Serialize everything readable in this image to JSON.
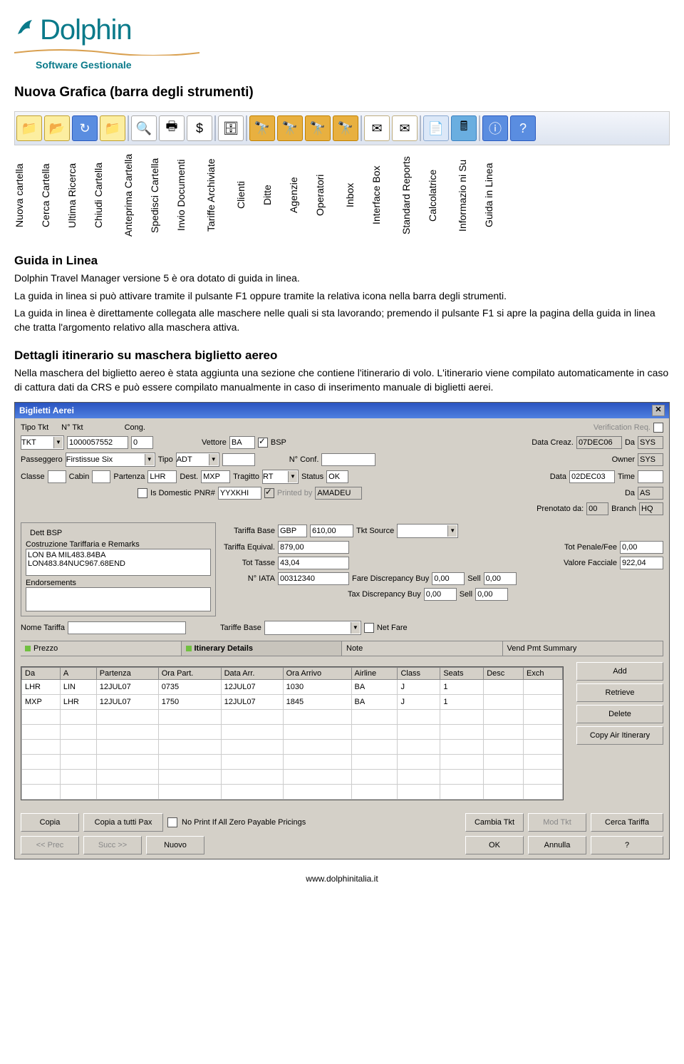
{
  "logo": {
    "name": "Dolphin",
    "tag": "Software Gestionale"
  },
  "h1": "Nuova Grafica (barra degli strumenti)",
  "toolbar_labels": [
    "Nuova cartella",
    "Cerca Cartella",
    "Ultima Ricerca",
    "Chiudi Cartella",
    "Anteprima Cartella",
    "Spedisci Cartella",
    "Invio Documenti",
    "Tariffe Archiviate",
    "Clienti",
    "Ditte",
    "Agenzie",
    "Operatori",
    "Inbox",
    "Interface Box",
    "Standard Reports",
    "Calcolatrice",
    "Informazio ni Su",
    "Guida in Linea"
  ],
  "tb_letters": [
    "CL",
    "D",
    "A",
    "F"
  ],
  "s1_h": "Guida in Linea",
  "s1_p1": "Dolphin Travel Manager versione 5 è ora dotato di guida in linea.",
  "s1_p2": "La guida in linea si può attivare tramite il pulsante F1 oppure tramite la relativa icona nella barra degli strumenti.",
  "s1_p3": "La guida in linea è direttamente collegata alle maschere nelle quali si sta lavorando; premendo il pulsante F1 si apre la pagina della guida in linea che tratta l'argomento relativo alla maschera attiva.",
  "s2_h": "Dettagli itinerario su maschera biglietto aereo",
  "s2_p1": "Nella maschera del biglietto aereo è stata aggiunta una sezione che contiene l'itinerario di volo. L'itinerario viene compilato automaticamente in caso di cattura dati da CRS e può essere compilato manualmente in caso di inserimento manuale di biglietti aerei.",
  "win": {
    "title": "Biglietti Aerei",
    "labels": {
      "tipo_tkt": "Tipo Tkt",
      "n_tkt": "N° Tkt",
      "cong": "Cong.",
      "ver_req": "Verification Req.",
      "vettore": "Vettore",
      "bsp": "BSP",
      "data_creaz": "Data Creaz.",
      "da": "Da",
      "passeggero": "Passeggero",
      "tipo": "Tipo",
      "n_conf": "N° Conf.",
      "owner": "Owner",
      "classe": "Classe",
      "cabin": "Cabin",
      "partenza": "Partenza",
      "dest": "Dest.",
      "tragitto": "Tragitto",
      "status": "Status",
      "data": "Data",
      "time": "Time",
      "is_dom": "Is Domestic",
      "pnr": "PNR#",
      "printed_by": "Printed by",
      "da2": "Da",
      "prenotato": "Prenotato da:",
      "branch": "Branch",
      "dett_bsp": "Dett BSP",
      "costruzione": "Costruzione Tariffaria e Remarks",
      "endorsements": "Endorsements",
      "tariffa_base": "Tariffa Base",
      "tariffa_equival": "Tariffa Equival.",
      "tot_tasse": "Tot Tasse",
      "n_iata": "N° IATA",
      "tkt_source": "Tkt Source",
      "tot_penale": "Tot Penale/Fee",
      "valore_facciale": "Valore Facciale",
      "fare_disc": "Fare Discrepancy Buy",
      "tax_disc": "Tax Discrepancy Buy",
      "sell": "Sell",
      "nome_tariffa": "Nome Tariffa",
      "tariffe_base": "Tariffe Base",
      "net_fare": "Net Fare"
    },
    "vals": {
      "tipo_tkt": "TKT",
      "n_tkt": "1000057552",
      "cong": "0",
      "vettore": "BA",
      "data_creaz": "07DEC06",
      "da": "SYS",
      "passeggero": "Firstissue Six",
      "tipo": "ADT",
      "owner": "SYS",
      "partenza": "LHR",
      "dest": "MXP",
      "tragitto": "RT",
      "status": "OK",
      "data": "02DEC03",
      "pnr": "YYXKHI",
      "printed_by": "AMADEU",
      "da2": "AS",
      "prenotato": "00",
      "branch": "HQ",
      "remarks1": "LON BA MIL483.84BA",
      "remarks2": "LON483.84NUC967.68END",
      "tariffa_base_cur": "GBP",
      "tariffa_base_val": "610,00",
      "tariffa_equival": "879,00",
      "tot_tasse": "43,04",
      "n_iata": "00312340",
      "tot_penale": "0,00",
      "valore_facciale": "922,04",
      "fare_disc": "0,00",
      "fare_sell": "0,00",
      "tax_disc": "0,00",
      "tax_sell": "0,00"
    },
    "tabs": [
      "Prezzo",
      "Itinerary Details",
      "Note",
      "Vend Pmt Summary"
    ],
    "grid": {
      "cols": [
        "Da",
        "A",
        "Partenza",
        "Ora Part.",
        "Data Arr.",
        "Ora Arrivo",
        "Airline",
        "Class",
        "Seats",
        "Desc",
        "Exch"
      ],
      "rows": [
        [
          "LHR",
          "LIN",
          "12JUL07",
          "0735",
          "12JUL07",
          "1030",
          "BA",
          "J",
          "1",
          "",
          ""
        ],
        [
          "MXP",
          "LHR",
          "12JUL07",
          "1750",
          "12JUL07",
          "1845",
          "BA",
          "J",
          "1",
          "",
          ""
        ]
      ]
    },
    "rbtns": [
      "Add",
      "Retrieve",
      "Delete",
      "Copy Air Itinerary"
    ],
    "bot": {
      "copia": "Copia",
      "copia_tutti": "Copia a tutti Pax",
      "no_print": "No Print If All Zero Payable Pricings",
      "cambia": "Cambia Tkt",
      "mod": "Mod Tkt",
      "cerca": "Cerca Tariffa",
      "prec": "<< Prec",
      "succ": "Succ >>",
      "nuovo": "Nuovo",
      "ok": "OK",
      "annulla": "Annulla",
      "help": "?"
    }
  },
  "footer": "www.dolphinitalia.it"
}
